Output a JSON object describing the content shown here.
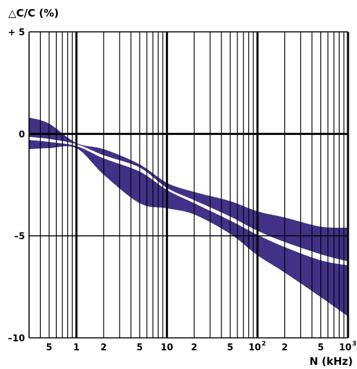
{
  "chart_data": {
    "type": "area",
    "ylabel": "△C/C (%)",
    "xlabel": "N (kHz)",
    "x_scale": "log",
    "xlim": [
      0.3,
      1000
    ],
    "ylim": [
      -10,
      5
    ],
    "y_ticks": [
      {
        "value": 5,
        "label": "+ 5"
      },
      {
        "value": 0,
        "label": "0"
      },
      {
        "value": -5,
        "label": "–5"
      },
      {
        "value": -10,
        "label": "–10"
      }
    ],
    "x_ticks": [
      {
        "value": 0.5,
        "label": "5"
      },
      {
        "value": 1,
        "label": "1"
      },
      {
        "value": 2,
        "label": "2"
      },
      {
        "value": 5,
        "label": "5"
      },
      {
        "value": 10,
        "label": "10"
      },
      {
        "value": 20,
        "label": "2"
      },
      {
        "value": 50,
        "label": "5"
      },
      {
        "value": 100,
        "label": "10",
        "sup": "2"
      },
      {
        "value": 200,
        "label": "2"
      },
      {
        "value": 500,
        "label": "5"
      },
      {
        "value": 1000,
        "label": "10",
        "sup": "3"
      }
    ],
    "grid": true,
    "bands": [
      {
        "x": [
          0.3,
          0.5,
          1,
          2,
          5,
          10,
          20,
          50,
          100,
          200,
          500,
          1000
        ],
        "upper": [
          0.8,
          0.5,
          -0.45,
          -0.75,
          -1.5,
          -2.4,
          -2.85,
          -3.3,
          -3.8,
          -4.1,
          -4.55,
          -4.6
        ],
        "lower": [
          -0.15,
          -0.25,
          -0.5,
          -1.05,
          -1.65,
          -2.65,
          -3.25,
          -4.05,
          -4.75,
          -5.3,
          -5.9,
          -6.25
        ]
      },
      {
        "x": [
          0.3,
          0.5,
          1,
          2,
          5,
          10,
          20,
          50,
          100,
          200,
          500,
          1000
        ],
        "upper": [
          -0.3,
          -0.4,
          -0.6,
          -1.2,
          -1.85,
          -2.75,
          -3.4,
          -4.25,
          -4.95,
          -5.55,
          -6.2,
          -6.45
        ],
        "lower": [
          -0.75,
          -0.7,
          -0.7,
          -2.0,
          -3.4,
          -3.65,
          -3.95,
          -4.9,
          -5.95,
          -6.8,
          -8.0,
          -8.95
        ]
      }
    ],
    "band_color": "#433187"
  }
}
